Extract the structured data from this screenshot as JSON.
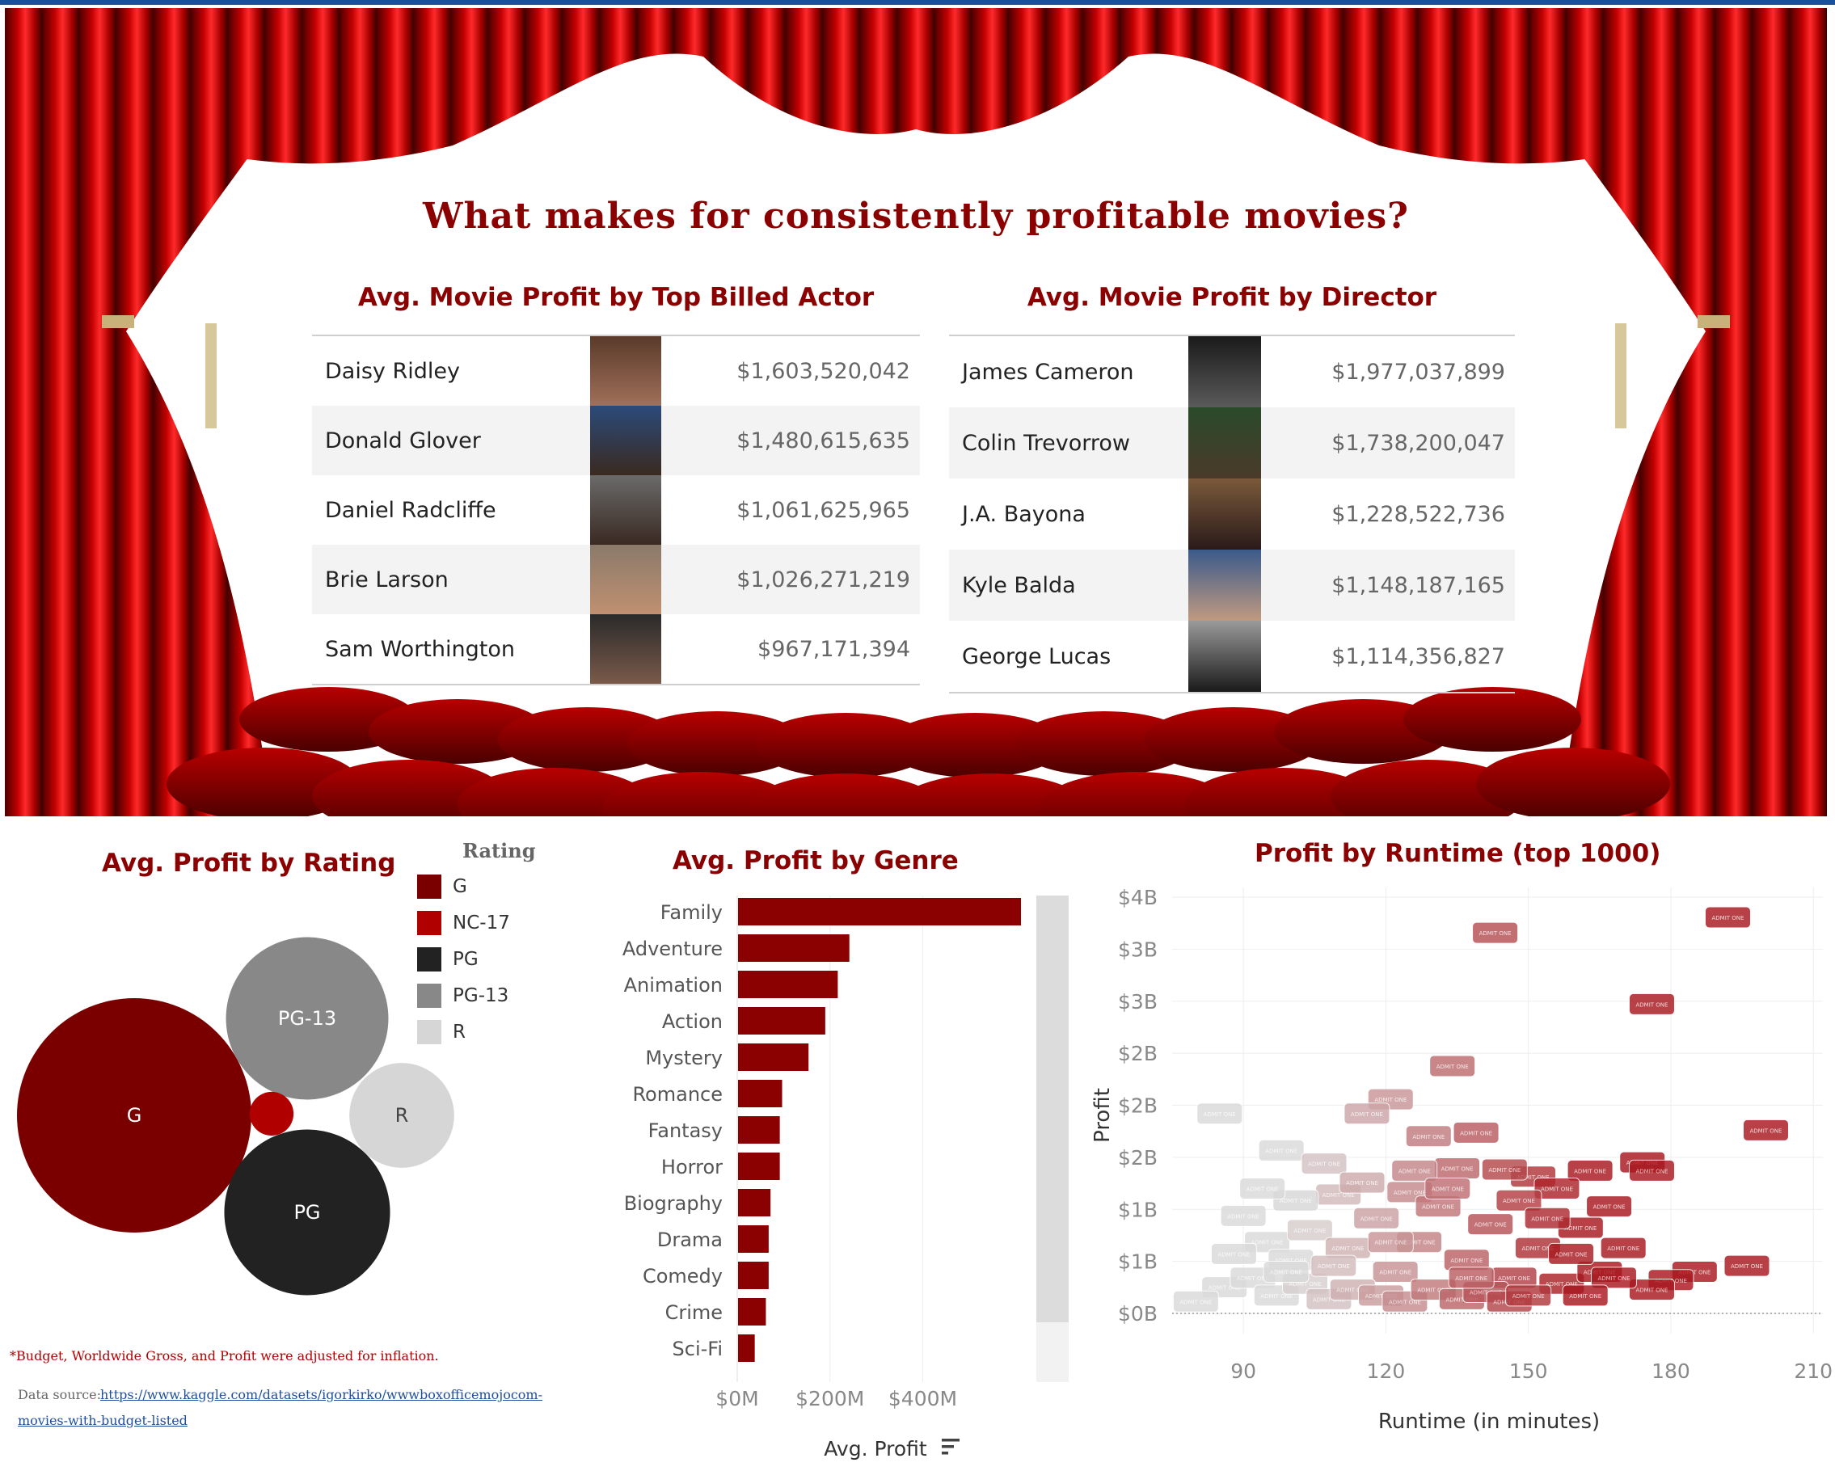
{
  "main_title": "What makes for consistently profitable movies?",
  "actors": {
    "title": "Avg. Movie Profit by Top Billed Actor",
    "rows": [
      {
        "name": "Daisy Ridley",
        "value": "$1,603,520,042"
      },
      {
        "name": "Donald Glover",
        "value": "$1,480,615,635"
      },
      {
        "name": "Daniel Radcliffe",
        "value": "$1,061,625,965"
      },
      {
        "name": "Brie Larson",
        "value": "$1,026,271,219"
      },
      {
        "name": "Sam Worthington",
        "value": "$967,171,394"
      }
    ]
  },
  "directors": {
    "title": "Avg. Movie Profit by Director",
    "rows": [
      {
        "name": "James Cameron",
        "value": "$1,977,037,899"
      },
      {
        "name": "Colin Trevorrow",
        "value": "$1,738,200,047"
      },
      {
        "name": "J.A. Bayona",
        "value": "$1,228,522,736"
      },
      {
        "name": "Kyle Balda",
        "value": "$1,148,187,165"
      },
      {
        "name": "George Lucas",
        "value": "$1,114,356,827"
      }
    ]
  },
  "footnotes": {
    "adjusted": "*Budget, Worldwide Gross, and Profit were adjusted for inflation.",
    "source_label": "Data source:",
    "source_link_1": "https://www.kaggle.com/datasets/igorkirko/wwwboxofficemojocom-",
    "source_link_2": "movies-with-budget-listed"
  },
  "colors": {
    "dark_red": "#8b0000",
    "G": "#7a0000",
    "NC-17": "#b00000",
    "PG": "#222222",
    "PG-13": "#888888",
    "R": "#d6d6d6"
  },
  "chart_data": [
    {
      "type": "bubble",
      "title": "Avg. Profit by Rating",
      "legend_title": "Rating",
      "legend": [
        "G",
        "NC-17",
        "PG",
        "PG-13",
        "R"
      ],
      "bubbles": [
        {
          "label": "G",
          "value": 100
        },
        {
          "label": "PG-13",
          "value": 48
        },
        {
          "label": "PG",
          "value": 50
        },
        {
          "label": "R",
          "value": 20
        },
        {
          "label": "NC-17",
          "value": 3.5
        }
      ]
    },
    {
      "type": "bar",
      "orientation": "horizontal",
      "title": "Avg. Profit by Genre",
      "categories": [
        "Family",
        "Adventure",
        "Animation",
        "Action",
        "Mystery",
        "Romance",
        "Fantasy",
        "Horror",
        "Biography",
        "Drama",
        "Comedy",
        "Crime",
        "Sci-Fi"
      ],
      "values": [
        610,
        240,
        215,
        188,
        152,
        95,
        90,
        90,
        70,
        66,
        66,
        60,
        36
      ],
      "xlabel": "Avg. Profit",
      "xticks": [
        "$0M",
        "$200M",
        "$400M"
      ],
      "xlim": [
        0,
        610
      ]
    },
    {
      "type": "scatter",
      "title": "Profit by Runtime (top 1000)",
      "xlabel": "Runtime (in minutes)",
      "ylabel": "Profit",
      "xticks": [
        90,
        120,
        150,
        180,
        210
      ],
      "yticks": [
        "$0B",
        "$1B",
        "$1B",
        "$2B",
        "$2B",
        "$2B",
        "$3B",
        "$3B",
        "$4B"
      ],
      "xlim": [
        75,
        212
      ],
      "ylim": [
        0,
        3.5
      ],
      "marker_text": "ADMIT ONE",
      "points": [
        {
          "x": 192,
          "y": 3.33
        },
        {
          "x": 143,
          "y": 3.2
        },
        {
          "x": 176,
          "y": 2.6
        },
        {
          "x": 134,
          "y": 2.08
        },
        {
          "x": 200,
          "y": 1.54
        },
        {
          "x": 121,
          "y": 1.8
        },
        {
          "x": 116,
          "y": 1.68
        },
        {
          "x": 85,
          "y": 1.68
        },
        {
          "x": 151,
          "y": 1.15
        },
        {
          "x": 174,
          "y": 1.27
        },
        {
          "x": 139,
          "y": 1.52
        },
        {
          "x": 129,
          "y": 1.49
        },
        {
          "x": 163,
          "y": 1.2
        },
        {
          "x": 176,
          "y": 1.2
        },
        {
          "x": 98,
          "y": 1.37
        },
        {
          "x": 107,
          "y": 1.26
        },
        {
          "x": 110,
          "y": 1.0
        },
        {
          "x": 125,
          "y": 1.02
        },
        {
          "x": 135,
          "y": 1.22
        },
        {
          "x": 145,
          "y": 1.21
        },
        {
          "x": 156,
          "y": 1.05
        },
        {
          "x": 167,
          "y": 0.9
        },
        {
          "x": 161,
          "y": 0.72
        },
        {
          "x": 170,
          "y": 0.55
        },
        {
          "x": 196,
          "y": 0.4
        },
        {
          "x": 185,
          "y": 0.35
        },
        {
          "x": 180,
          "y": 0.28
        },
        {
          "x": 176,
          "y": 0.2
        },
        {
          "x": 90,
          "y": 0.82
        },
        {
          "x": 95,
          "y": 0.6
        },
        {
          "x": 100,
          "y": 0.45
        },
        {
          "x": 104,
          "y": 0.7
        },
        {
          "x": 112,
          "y": 0.55
        },
        {
          "x": 118,
          "y": 0.8
        },
        {
          "x": 122,
          "y": 0.35
        },
        {
          "x": 127,
          "y": 0.6
        },
        {
          "x": 131,
          "y": 0.9
        },
        {
          "x": 137,
          "y": 0.45
        },
        {
          "x": 142,
          "y": 0.75
        },
        {
          "x": 147,
          "y": 0.3
        },
        {
          "x": 152,
          "y": 0.55
        },
        {
          "x": 157,
          "y": 0.25
        },
        {
          "x": 165,
          "y": 0.35
        },
        {
          "x": 86,
          "y": 0.22
        },
        {
          "x": 92,
          "y": 0.3
        },
        {
          "x": 97,
          "y": 0.15
        },
        {
          "x": 103,
          "y": 0.25
        },
        {
          "x": 108,
          "y": 0.12
        },
        {
          "x": 113,
          "y": 0.2
        },
        {
          "x": 119,
          "y": 0.15
        },
        {
          "x": 124,
          "y": 0.1
        },
        {
          "x": 130,
          "y": 0.2
        },
        {
          "x": 136,
          "y": 0.12
        },
        {
          "x": 141,
          "y": 0.18
        },
        {
          "x": 146,
          "y": 0.1
        },
        {
          "x": 150,
          "y": 0.15
        },
        {
          "x": 80,
          "y": 0.1
        },
        {
          "x": 88,
          "y": 0.5
        },
        {
          "x": 101,
          "y": 0.95
        },
        {
          "x": 115,
          "y": 1.1
        },
        {
          "x": 126,
          "y": 1.2
        },
        {
          "x": 133,
          "y": 1.05
        },
        {
          "x": 148,
          "y": 0.95
        },
        {
          "x": 159,
          "y": 0.5
        },
        {
          "x": 168,
          "y": 0.3
        },
        {
          "x": 94,
          "y": 1.05
        },
        {
          "x": 109,
          "y": 0.4
        },
        {
          "x": 121,
          "y": 0.6
        },
        {
          "x": 138,
          "y": 0.3
        },
        {
          "x": 154,
          "y": 0.8
        },
        {
          "x": 162,
          "y": 0.15
        },
        {
          "x": 99,
          "y": 0.35
        }
      ]
    }
  ]
}
